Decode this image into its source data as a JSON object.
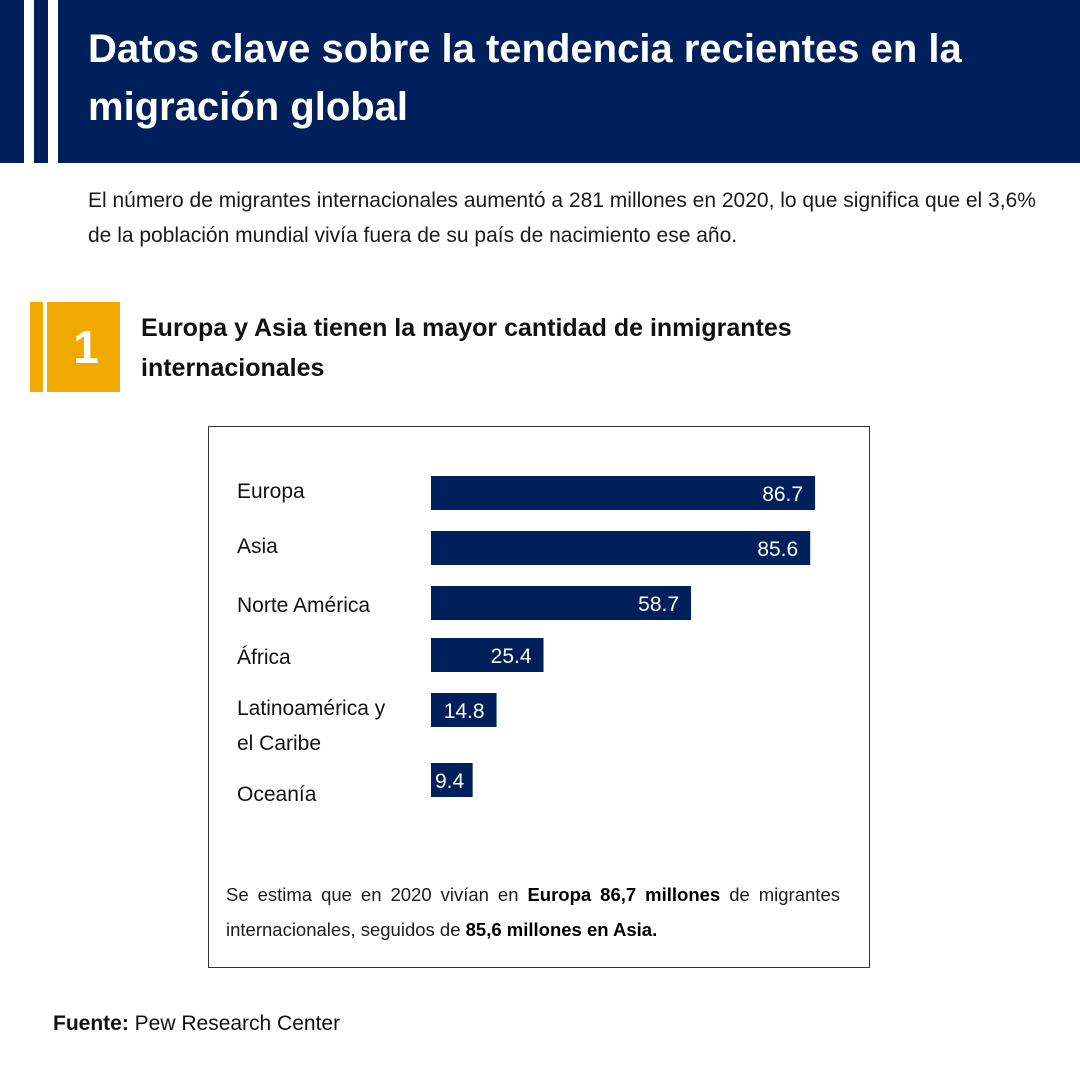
{
  "header": {
    "title": "Datos clave sobre la tendencia recientes en la migración global",
    "background_color": "#00205b"
  },
  "intro": "El número de migrantes internacionales aumentó a 281 millones en 2020, lo que significa que el 3,6% de la población mundial vivía fuera de su país de nacimiento ese año.",
  "section": {
    "number": "1",
    "title": "Europa y Asia tienen la mayor cantidad de inmigrantes internacionales",
    "badge_color": "#f0a900"
  },
  "chart_data": {
    "type": "bar",
    "orientation": "horizontal",
    "title": "",
    "xlabel": "",
    "ylabel": "",
    "categories": [
      [
        "Europa"
      ],
      [
        "Asia"
      ],
      [
        "Norte América"
      ],
      [
        "África"
      ],
      [
        "Latinoamérica y",
        "el Caribe"
      ],
      [
        "Oceanía"
      ]
    ],
    "values": [
      86.7,
      85.6,
      58.7,
      25.4,
      14.8,
      9.4
    ],
    "value_labels": [
      "86.7",
      "85.6",
      "58.7",
      "25.4",
      "14.8",
      "9.4"
    ],
    "xlim": [
      0,
      100
    ],
    "grid": false,
    "bar_color": "#00205b"
  },
  "note": {
    "part1": "Se estima que en 2020 vivían en ",
    "bold1": "Europa 86,7 millones",
    "part2": " de migrantes internacionales, seguidos de ",
    "bold2": "85,6 millones en Asia."
  },
  "source": {
    "label": "Fuente:",
    "text": " Pew Research Center"
  }
}
